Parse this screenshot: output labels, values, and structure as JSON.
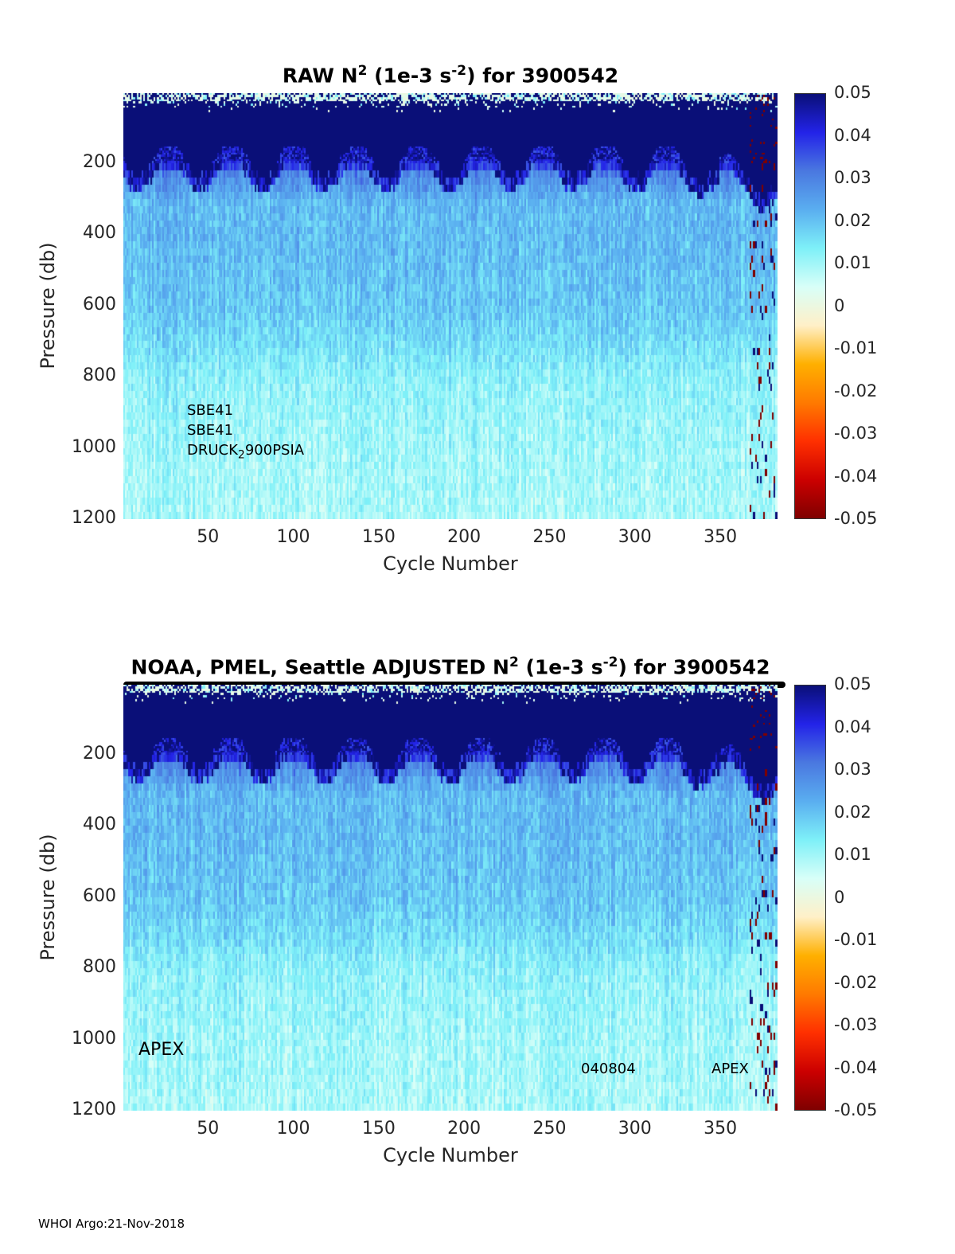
{
  "chart_data": [
    {
      "type": "heatmap",
      "title_parts": [
        "RAW N",
        "2",
        " (1e-3 s",
        "-2",
        ") for 3900542"
      ],
      "xlabel": "Cycle Number",
      "ylabel": "Pressure (db)",
      "xlim": [
        1,
        383
      ],
      "ylim": [
        3,
        1200
      ],
      "y_reversed": true,
      "xticks": [
        "50",
        "100",
        "150",
        "200",
        "250",
        "300",
        "350"
      ],
      "yticks": [
        "200",
        "400",
        "600",
        "800",
        "1000",
        "1200"
      ],
      "annotations": [
        "SBE41",
        "SBE41",
        "DRUCK",
        "2",
        "900PSIA"
      ],
      "seed": 11
    },
    {
      "type": "heatmap",
      "title_parts": [
        "NOAA, PMEL, Seattle  ADJUSTED N",
        "2",
        " (1e-3 s",
        "-2",
        ") for 3900542"
      ],
      "xlabel": "Cycle Number",
      "ylabel": "Pressure (db)",
      "xlim": [
        1,
        383
      ],
      "ylim": [
        3,
        1200
      ],
      "y_reversed": true,
      "xticks": [
        "50",
        "100",
        "150",
        "200",
        "250",
        "300",
        "350"
      ],
      "yticks": [
        "200",
        "400",
        "600",
        "800",
        "1000",
        "1200"
      ],
      "annotations": [
        "APEX",
        "040804",
        "APEX"
      ],
      "seed": 12
    }
  ],
  "shared": {
    "clim": [
      -0.05,
      0.05
    ],
    "colorbar_ticks": [
      "0.05",
      "0.04",
      "0.03",
      "0.02",
      "0.01",
      "0",
      "-0.01",
      "-0.02",
      "-0.03",
      "-0.04",
      "-0.05"
    ],
    "colormap": [
      "#7f0000",
      "#cc0000",
      "#ff3000",
      "#ff7a00",
      "#ffb000",
      "#fff0c8",
      "#d8fff8",
      "#7ef0f8",
      "#5aaef0",
      "#4a78e0",
      "#2323e8",
      "#0a0f78"
    ],
    "mean_profile": {
      "pressure_db": [
        10,
        50,
        100,
        150,
        200,
        300,
        400,
        500,
        600,
        700,
        800,
        1000,
        1200
      ],
      "n2": [
        0.004,
        0.06,
        0.06,
        0.055,
        0.03,
        0.021,
        0.021,
        0.02,
        0.019,
        0.016,
        0.012,
        0.01,
        0.009
      ]
    }
  },
  "footer": "WHOI Argo:21-Nov-2018"
}
